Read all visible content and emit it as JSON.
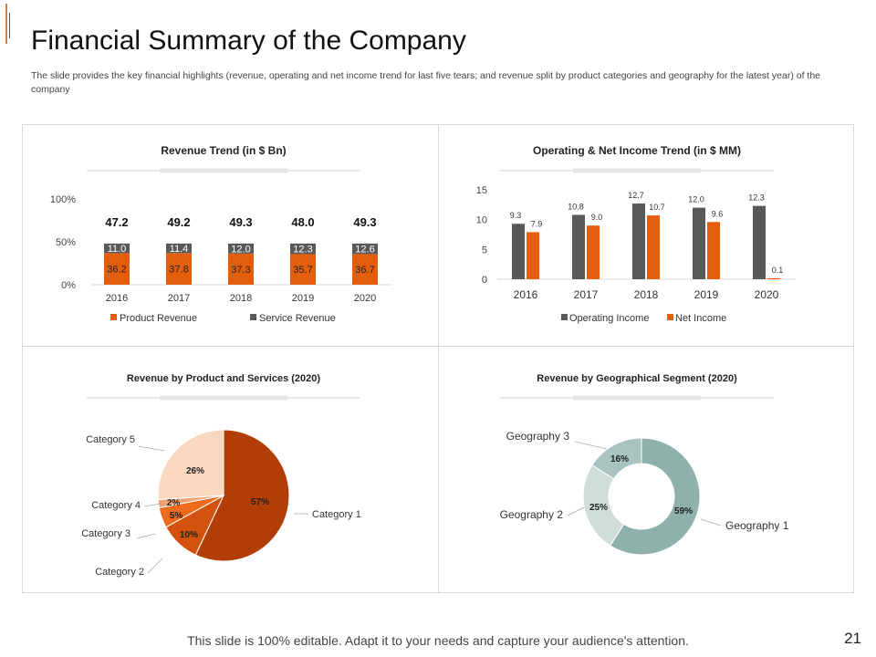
{
  "slide": {
    "title": "Financial Summary of the Company",
    "subtitle": "The slide provides the key financial highlights (revenue, operating and net income trend for last five tears; and revenue split by product categories and geography for the latest year) of the company",
    "footer": "This slide is 100% editable. Adapt it to your needs and capture your audience's attention.",
    "page_number": "21"
  },
  "colors": {
    "orange": "#e35f0e",
    "dark_gray": "#595959",
    "pie": [
      "#b13e07",
      "#d3520d",
      "#ee6a1c",
      "#f3a273",
      "#fad8c0"
    ],
    "donut": [
      "#8fb1ac",
      "#cfdedb",
      "#a9c4c0"
    ]
  },
  "chart_data": [
    {
      "id": "revenue",
      "type": "bar",
      "stacked": true,
      "title": "Revenue Trend (in $ Bn)",
      "categories": [
        "2016",
        "2017",
        "2018",
        "2019",
        "2020"
      ],
      "series": [
        {
          "name": "Product Revenue",
          "values": [
            36.2,
            37.8,
            37.3,
            35.7,
            36.7
          ]
        },
        {
          "name": "Service Revenue",
          "values": [
            11.0,
            11.4,
            12.0,
            12.3,
            12.6
          ]
        }
      ],
      "totals": [
        "47.2",
        "49.2",
        "49.3",
        "48.0",
        "49.3"
      ],
      "labels": {
        "Product Revenue": [
          "36.2",
          "37.8",
          "37.3",
          "35.7",
          "36.7"
        ],
        "Service Revenue": [
          "11.0",
          "11.4",
          "12.0",
          "12.3",
          "12.6"
        ]
      },
      "yticks": [
        "100%",
        "50%",
        "0%"
      ],
      "ylim": [
        0,
        100
      ]
    },
    {
      "id": "income",
      "type": "bar",
      "title": "Operating & Net Income Trend (in $ MM)",
      "categories": [
        "2016",
        "2017",
        "2018",
        "2019",
        "2020"
      ],
      "series": [
        {
          "name": "Operating Income",
          "values": [
            9.3,
            10.8,
            12.7,
            12.0,
            12.3
          ]
        },
        {
          "name": "Net Income",
          "values": [
            7.9,
            9.0,
            10.7,
            9.6,
            0.1
          ]
        }
      ],
      "labels": {
        "Operating Income": [
          "9.3",
          "10.8",
          "12.7",
          "12.0",
          "12.3"
        ],
        "Net Income": [
          "7.9",
          "9.0",
          "10.7",
          "9.6",
          "0.1"
        ]
      },
      "yticks": [
        "0",
        "5",
        "10",
        "15"
      ],
      "ylim": [
        0,
        15
      ]
    },
    {
      "id": "product_pie",
      "type": "pie",
      "title": "Revenue by Product and Services (2020)",
      "slices": [
        {
          "label": "Category 1",
          "value": 57,
          "text": "57%"
        },
        {
          "label": "Category 2",
          "value": 10,
          "text": "10%"
        },
        {
          "label": "Category 3",
          "value": 5,
          "text": "5%"
        },
        {
          "label": "Category 4",
          "value": 2,
          "text": "2%"
        },
        {
          "label": "Category 5",
          "value": 26,
          "text": "26%"
        }
      ]
    },
    {
      "id": "geo_donut",
      "type": "pie",
      "donut": true,
      "title": "Revenue by Geographical Segment (2020)",
      "slices": [
        {
          "label": "Geography  1",
          "value": 59,
          "text": "59%"
        },
        {
          "label": "Geography  2",
          "value": 25,
          "text": "25%"
        },
        {
          "label": "Geography  3",
          "value": 16,
          "text": "16%"
        }
      ]
    }
  ]
}
